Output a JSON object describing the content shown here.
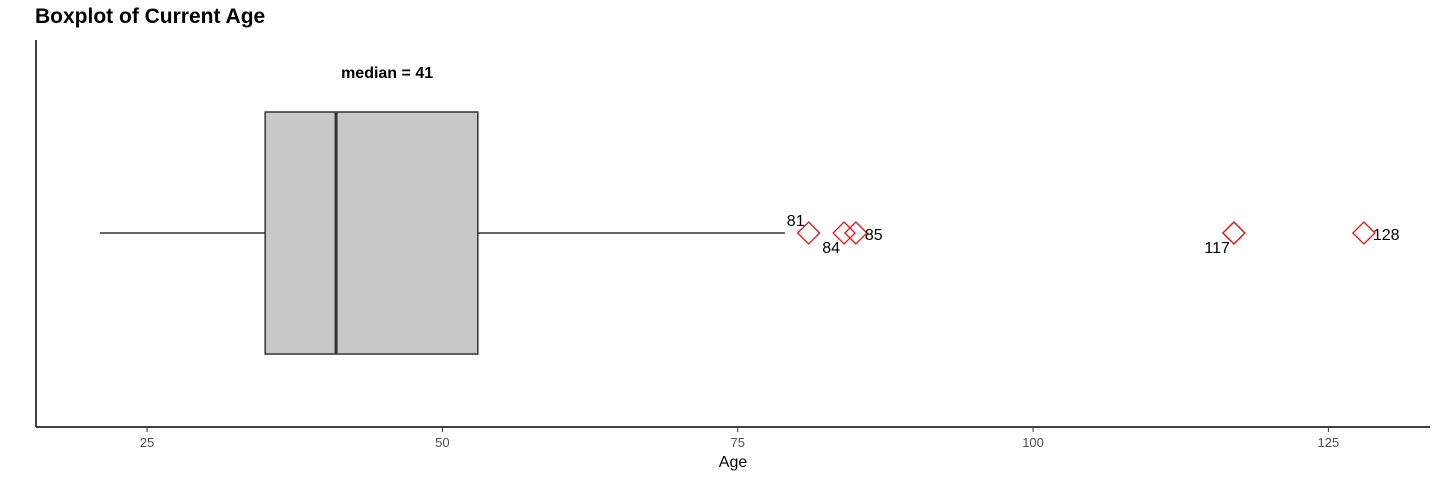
{
  "chart_data": {
    "type": "boxplot",
    "title": "Boxplot of Current Age",
    "xlabel": "Age",
    "ylabel": "",
    "xlim": [
      15.6,
      133.6
    ],
    "ticks": [
      25,
      50,
      75,
      100,
      125
    ],
    "stats": {
      "whisker_low": 21,
      "q1": 35,
      "median": 41,
      "q3": 53,
      "whisker_high": 79
    },
    "median_annotation": "median = 41",
    "outliers": [
      {
        "value": 81,
        "label": "81",
        "label_pos": "above-left"
      },
      {
        "value": 84,
        "label": "84",
        "label_pos": "below-left"
      },
      {
        "value": 85,
        "label": "85",
        "label_pos": "right"
      },
      {
        "value": 117,
        "label": "117",
        "label_pos": "below-left"
      },
      {
        "value": 117,
        "label": "",
        "label_pos": "none"
      },
      {
        "value": 128,
        "label": "128",
        "label_pos": "right"
      }
    ],
    "colors": {
      "box_fill": "#c8c8c8",
      "box_stroke": "#333333",
      "outlier": "#e31a1c"
    },
    "grid": false
  }
}
